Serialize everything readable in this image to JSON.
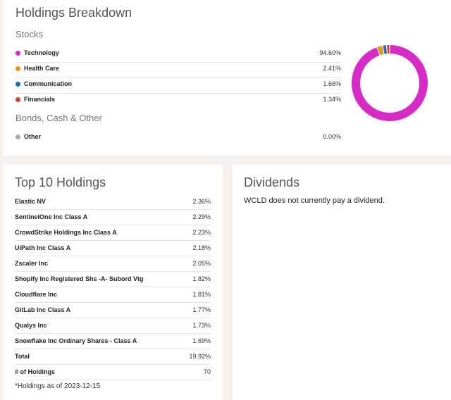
{
  "holdings_breakdown": {
    "title": "Holdings Breakdown",
    "stocks_heading": "Stocks",
    "stocks": [
      {
        "label": "Technology",
        "value": "94.60%",
        "color": "#d62bc5"
      },
      {
        "label": "Health Care",
        "value": "2.41%",
        "color": "#e8950f"
      },
      {
        "label": "Communication",
        "value": "1.66%",
        "color": "#1a6bb5"
      },
      {
        "label": "Financials",
        "value": "1.34%",
        "color": "#d2402f"
      }
    ],
    "other_heading": "Bonds, Cash & Other",
    "other": [
      {
        "label": "Other",
        "value": "0.00%",
        "color": "#aaaaaa"
      }
    ]
  },
  "chart_data": {
    "type": "pie",
    "subtype": "donut",
    "categories": [
      "Technology",
      "Health Care",
      "Communication",
      "Financials",
      "Other"
    ],
    "values": [
      94.6,
      2.41,
      1.66,
      1.34,
      0.0
    ],
    "colors": [
      "#d62bc5",
      "#e8950f",
      "#1a6bb5",
      "#d2402f",
      "#aaaaaa"
    ],
    "title": "Holdings Breakdown"
  },
  "top10": {
    "title": "Top 10 Holdings",
    "rows": [
      {
        "name": "Elastic NV",
        "value": "2.36%"
      },
      {
        "name": "SentinelOne Inc Class A",
        "value": "2.29%"
      },
      {
        "name": "CrowdStrike Holdings Inc Class A",
        "value": "2.23%"
      },
      {
        "name": "UiPath Inc Class A",
        "value": "2.18%"
      },
      {
        "name": "Zscaler Inc",
        "value": "2.05%"
      },
      {
        "name": "Shopify Inc Registered Shs -A- Subord Vtg",
        "value": "1.82%"
      },
      {
        "name": "Cloudflare Inc",
        "value": "1.81%"
      },
      {
        "name": "GitLab Inc Class A",
        "value": "1.77%"
      },
      {
        "name": "Qualys Inc",
        "value": "1.73%"
      },
      {
        "name": "Snowflake Inc Ordinary Shares - Class A",
        "value": "1.69%"
      }
    ],
    "total_label": "Total",
    "total_value": "19.92%",
    "count_label": "# of Holdings",
    "count_value": "70",
    "note": "*Holdings as of 2023-12-15"
  },
  "dividends": {
    "title": "Dividends",
    "text": "WCLD does not currently pay a dividend."
  }
}
